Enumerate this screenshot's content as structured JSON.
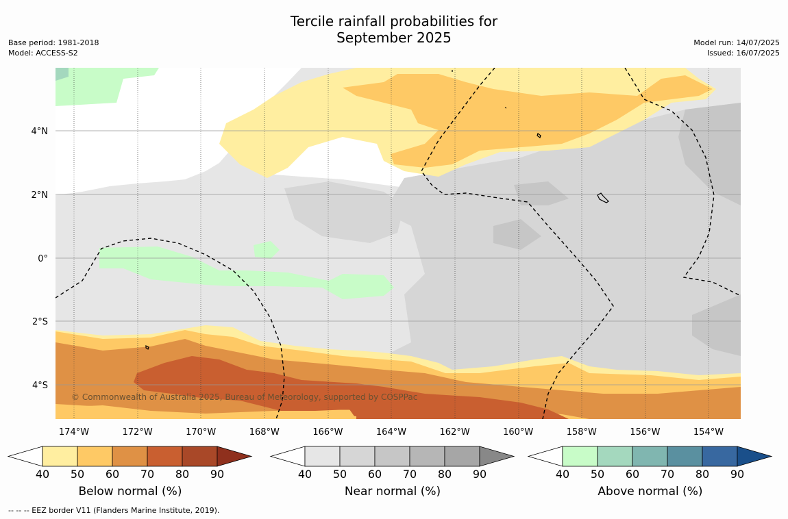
{
  "title_line1": "Tercile rainfall probabilities for",
  "title_line2": "September 2025",
  "base_period": "Base period: 1981-2018",
  "model": "Model: ACCESS-S2",
  "model_run": "Model run: 14/07/2025",
  "issued": "Issued: 16/07/2025",
  "copyright": "© Commonwealth of Australia 2025, Bureau of Meteorology, supported by COSPPac",
  "footnote": "--  --  -- EEZ border V11 (Flanders Marine Institute, 2019).",
  "x_ticks": [
    "174°W",
    "172°W",
    "170°W",
    "168°W",
    "166°W",
    "164°W",
    "162°W",
    "160°W",
    "158°W",
    "156°W",
    "154°W"
  ],
  "y_ticks": [
    "4°N",
    "2°N",
    "0°",
    "2°S",
    "4°S"
  ],
  "legends": [
    {
      "title": "Below normal (%)",
      "labels": [
        "40",
        "50",
        "60",
        "70",
        "80",
        "90"
      ],
      "colors": [
        "#ffeea0",
        "#fec965",
        "#df9145",
        "#c95f30",
        "#a94828",
        "#8f301d"
      ]
    },
    {
      "title": "Near normal (%)",
      "labels": [
        "40",
        "50",
        "60",
        "70",
        "80",
        "90"
      ],
      "colors": [
        "#e6e6e6",
        "#d6d6d6",
        "#c6c6c6",
        "#b6b6b6",
        "#a6a6a6",
        "#888888"
      ]
    },
    {
      "title": "Above normal (%)",
      "labels": [
        "40",
        "50",
        "60",
        "70",
        "80",
        "90"
      ],
      "colors": [
        "#c8fcc8",
        "#a4d8be",
        "#80b6b0",
        "#5a90a0",
        "#3868a0",
        "#1a4f8a"
      ]
    }
  ],
  "colors": {
    "below40": "#ffeea0",
    "below50": "#fec965",
    "below60": "#df9145",
    "below70": "#c95f30",
    "near40": "#e6e6e6",
    "near50": "#d6d6d6",
    "near60": "#c6c6c6",
    "above40": "#c8fcc8",
    "above50": "#a4d8be",
    "white": "#ffffff"
  }
}
